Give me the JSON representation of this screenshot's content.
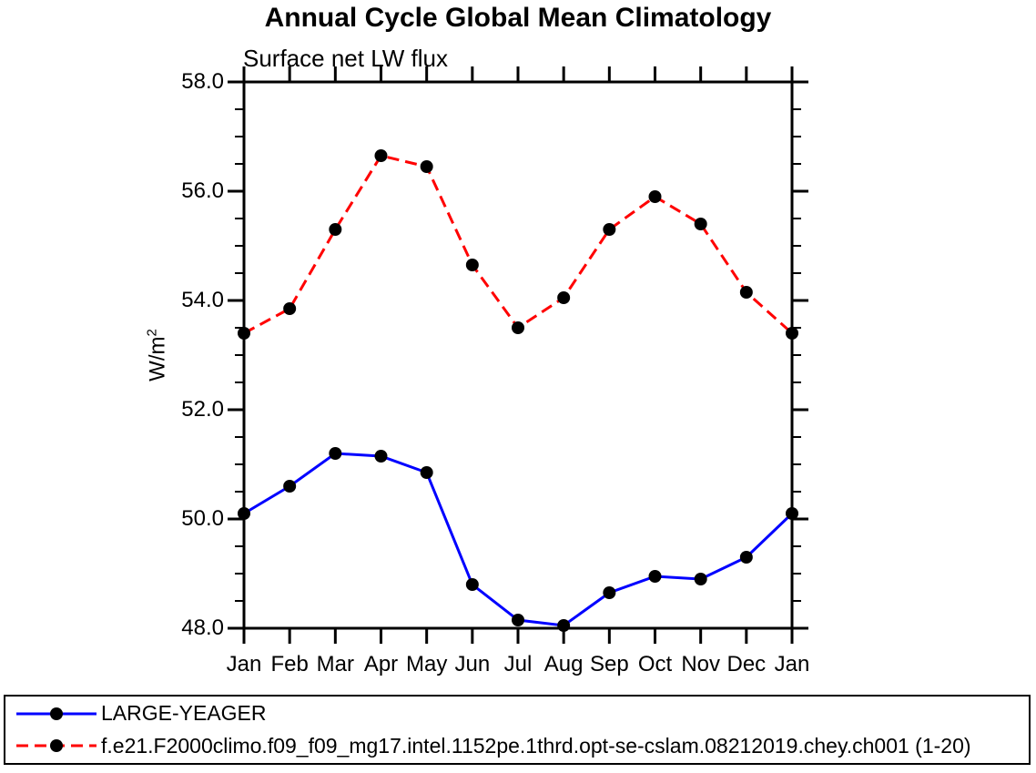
{
  "header": {
    "title": "Annual Cycle Global Mean Climatology",
    "subtitle": "Surface net LW flux"
  },
  "y_axis": {
    "label_base": "W/m",
    "label_exponent": "2"
  },
  "colors": {
    "axis": "#000000",
    "text": "#000000",
    "series1": "#0000ff",
    "series2": "#ff0000",
    "marker": "#000000",
    "background": "#ffffff"
  },
  "chart_data": {
    "type": "line",
    "title": "Annual Cycle Global Mean Climatology",
    "subtitle": "Surface net LW flux",
    "xlabel": "",
    "ylabel": "W/m^2",
    "categories": [
      "Jan",
      "Feb",
      "Mar",
      "Apr",
      "May",
      "Jun",
      "Jul",
      "Aug",
      "Sep",
      "Oct",
      "Nov",
      "Dec",
      "Jan"
    ],
    "ylim": [
      48.0,
      58.0
    ],
    "y_major_tick_labels": [
      "48.0",
      "50.0",
      "52.0",
      "54.0",
      "56.0",
      "58.0"
    ],
    "y_major_tick_values": [
      48.0,
      50.0,
      52.0,
      54.0,
      56.0,
      58.0
    ],
    "y_minor_step": 0.5,
    "grid": false,
    "legend_position": "bottom-box",
    "series": [
      {
        "name": "LARGE-YEAGER",
        "color": "#0000ff",
        "line_style": "solid",
        "marker": "filled-circle",
        "marker_color": "#000000",
        "values": [
          50.1,
          50.6,
          51.2,
          51.15,
          50.85,
          48.8,
          48.15,
          48.05,
          48.65,
          48.95,
          48.9,
          49.3,
          50.1
        ]
      },
      {
        "name": "f.e21.F2000climo.f09_f09_mg17.intel.1152pe.1thrd.opt-se-cslam.08212019.chey.ch001 (1-20)",
        "color": "#ff0000",
        "line_style": "dashed",
        "marker": "filled-circle",
        "marker_color": "#000000",
        "values": [
          53.4,
          53.85,
          55.3,
          56.65,
          56.45,
          54.65,
          53.5,
          54.05,
          55.3,
          55.9,
          55.4,
          54.15,
          53.4
        ]
      }
    ]
  }
}
